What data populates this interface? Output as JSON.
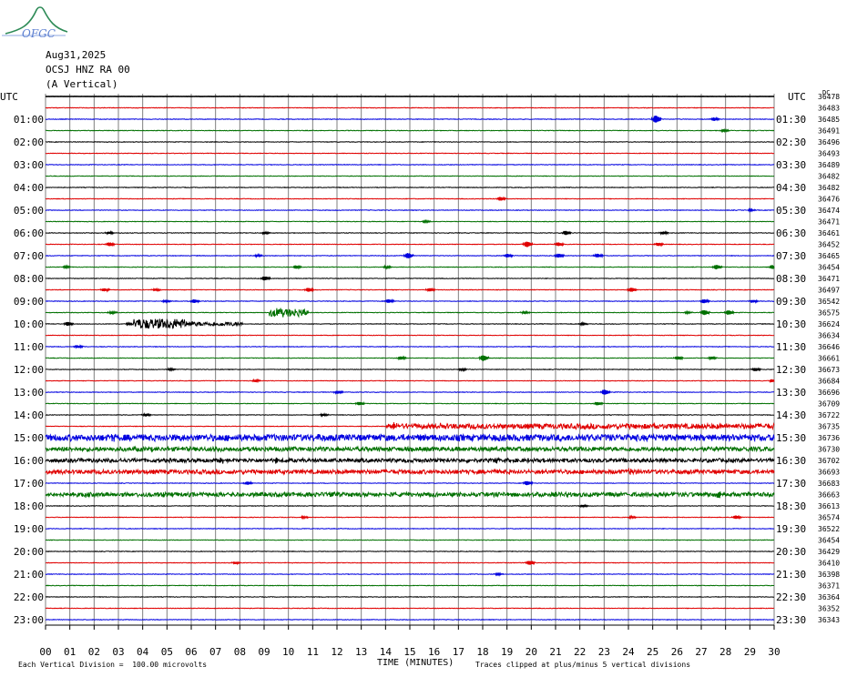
{
  "logo": {
    "text": "OFGC"
  },
  "header": {
    "date": "Aug31,2025",
    "station": "OCSJ HNZ RA 00",
    "component": "(A Vertical)"
  },
  "footer": {
    "left_note": "Each Vertical Division =  100.00 microvolts",
    "xlabel": "TIME (MINUTES)",
    "right_note": "Traces clipped at plus/minus 5 vertical divisions"
  },
  "colors": {
    "cycle": [
      "#000000",
      "#e00000",
      "#0000e0",
      "#007000"
    ],
    "grid": "#7f7f7f",
    "bg": "#ffffff"
  },
  "chart_data": {
    "type": "line",
    "title": "",
    "xlabel": "TIME (MINUTES)",
    "ylabel": "",
    "left_axis_title": "UTC",
    "right_axis_title": "UTC",
    "xlim": [
      0,
      30
    ],
    "x_ticks": [
      "00",
      "01",
      "02",
      "03",
      "04",
      "05",
      "06",
      "07",
      "08",
      "09",
      "10",
      "11",
      "12",
      "13",
      "14",
      "15",
      "16",
      "17",
      "18",
      "19",
      "20",
      "21",
      "22",
      "23",
      "24",
      "25",
      "26",
      "27",
      "28",
      "29",
      "30"
    ],
    "left_labels": [
      "01:00",
      "02:00",
      "03:00",
      "04:00",
      "05:00",
      "06:00",
      "07:00",
      "08:00",
      "09:00",
      "10:00",
      "11:00",
      "12:00",
      "13:00",
      "14:00",
      "15:00",
      "16:00",
      "17:00",
      "18:00",
      "19:00",
      "20:00",
      "21:00",
      "22:00",
      "23:00"
    ],
    "right_labels": [
      "01:30",
      "02:30",
      "03:30",
      "04:30",
      "05:30",
      "06:30",
      "07:30",
      "08:30",
      "09:30",
      "10:30",
      "11:30",
      "12:30",
      "13:30",
      "14:30",
      "15:30",
      "16:30",
      "17:30",
      "18:30",
      "19:30",
      "20:30",
      "21:30",
      "22:30",
      "23:30"
    ],
    "trace_values": [
      36478,
      36483,
      36485,
      36491,
      36496,
      36493,
      36489,
      36482,
      36482,
      36476,
      36474,
      36471,
      36461,
      36452,
      36465,
      36454,
      36471,
      36497,
      36542,
      36575,
      36624,
      36634,
      36646,
      36661,
      36673,
      36684,
      36696,
      36709,
      36722,
      36735,
      36736,
      36730,
      36702,
      36693,
      36683,
      36663,
      36613,
      36574,
      36522,
      36454,
      36429,
      36410,
      36398,
      36371,
      36364,
      36352,
      36343
    ],
    "corner_mark": "DC",
    "grid": true,
    "traces_per_hour": 2,
    "minutes_per_trace": 30,
    "events": [
      {
        "trace": 2,
        "minute": 25.0,
        "amp": 1.6
      },
      {
        "trace": 2,
        "minute": 27.4,
        "amp": 0.7
      },
      {
        "trace": 3,
        "minute": 27.8,
        "amp": 0.5
      },
      {
        "trace": 9,
        "minute": 18.6,
        "amp": 0.8
      },
      {
        "trace": 10,
        "minute": 28.9,
        "amp": 0.4
      },
      {
        "trace": 11,
        "minute": 15.5,
        "amp": 0.4
      },
      {
        "trace": 12,
        "minute": 2.5,
        "amp": 0.5
      },
      {
        "trace": 12,
        "minute": 8.9,
        "amp": 0.5
      },
      {
        "trace": 12,
        "minute": 21.3,
        "amp": 0.9
      },
      {
        "trace": 12,
        "minute": 25.3,
        "amp": 0.6
      },
      {
        "trace": 13,
        "minute": 2.5,
        "amp": 0.8
      },
      {
        "trace": 13,
        "minute": 19.7,
        "amp": 1.2
      },
      {
        "trace": 13,
        "minute": 21.0,
        "amp": 0.8
      },
      {
        "trace": 13,
        "minute": 25.1,
        "amp": 0.7
      },
      {
        "trace": 14,
        "minute": 8.6,
        "amp": 0.5
      },
      {
        "trace": 14,
        "minute": 14.8,
        "amp": 1.2
      },
      {
        "trace": 14,
        "minute": 18.9,
        "amp": 0.8
      },
      {
        "trace": 14,
        "minute": 21.0,
        "amp": 0.9
      },
      {
        "trace": 14,
        "minute": 22.6,
        "amp": 0.8
      },
      {
        "trace": 15,
        "minute": 0.7,
        "amp": 0.5
      },
      {
        "trace": 15,
        "minute": 10.2,
        "amp": 0.7
      },
      {
        "trace": 15,
        "minute": 13.9,
        "amp": 0.5
      },
      {
        "trace": 15,
        "minute": 27.5,
        "amp": 1.0
      },
      {
        "trace": 15,
        "minute": 29.8,
        "amp": 0.8
      },
      {
        "trace": 16,
        "minute": 8.9,
        "amp": 0.9
      },
      {
        "trace": 17,
        "minute": 2.3,
        "amp": 0.7
      },
      {
        "trace": 17,
        "minute": 4.4,
        "amp": 0.5
      },
      {
        "trace": 17,
        "minute": 10.7,
        "amp": 0.8
      },
      {
        "trace": 17,
        "minute": 15.7,
        "amp": 0.7
      },
      {
        "trace": 17,
        "minute": 24.0,
        "amp": 0.9
      },
      {
        "trace": 18,
        "minute": 4.8,
        "amp": 0.5
      },
      {
        "trace": 18,
        "minute": 6.0,
        "amp": 0.8
      },
      {
        "trace": 18,
        "minute": 14.0,
        "amp": 0.8
      },
      {
        "trace": 18,
        "minute": 27.0,
        "amp": 0.9
      },
      {
        "trace": 18,
        "minute": 29.0,
        "amp": 0.6
      },
      {
        "trace": 19,
        "minute": 2.6,
        "amp": 0.5
      },
      {
        "trace": 19,
        "minute": 9.5,
        "amp": 0.6
      },
      {
        "trace": 19,
        "minute": 19.6,
        "amp": 0.5
      },
      {
        "trace": 19,
        "minute": 26.3,
        "amp": 0.4
      },
      {
        "trace": 19,
        "minute": 27.0,
        "amp": 1.1
      },
      {
        "trace": 19,
        "minute": 28.0,
        "amp": 1.0
      },
      {
        "trace": 20,
        "minute": 0.8,
        "amp": 0.8
      },
      {
        "trace": 20,
        "minute": 3.3,
        "amp": 0.4
      },
      {
        "trace": 20,
        "minute": 5.7,
        "amp": 0.6
      },
      {
        "trace": 20,
        "minute": 22.0,
        "amp": 0.4
      },
      {
        "trace": 22,
        "minute": 1.2,
        "amp": 0.6
      },
      {
        "trace": 23,
        "minute": 14.5,
        "amp": 0.7
      },
      {
        "trace": 23,
        "minute": 17.9,
        "amp": 1.3
      },
      {
        "trace": 23,
        "minute": 25.9,
        "amp": 0.7
      },
      {
        "trace": 23,
        "minute": 27.3,
        "amp": 0.6
      },
      {
        "trace": 24,
        "minute": 5.0,
        "amp": 0.4
      },
      {
        "trace": 24,
        "minute": 17.0,
        "amp": 0.5
      },
      {
        "trace": 24,
        "minute": 29.1,
        "amp": 0.7
      },
      {
        "trace": 25,
        "minute": 8.5,
        "amp": 0.5
      },
      {
        "trace": 25,
        "minute": 29.8,
        "amp": 0.6
      },
      {
        "trace": 26,
        "minute": 11.9,
        "amp": 0.6
      },
      {
        "trace": 26,
        "minute": 22.9,
        "amp": 1.2
      },
      {
        "trace": 27,
        "minute": 12.8,
        "amp": 0.8
      },
      {
        "trace": 27,
        "minute": 22.6,
        "amp": 0.7
      },
      {
        "trace": 28,
        "minute": 4.0,
        "amp": 0.6
      },
      {
        "trace": 28,
        "minute": 11.3,
        "amp": 0.5
      },
      {
        "trace": 29,
        "minute": 14.2,
        "amp": 0.7
      },
      {
        "trace": 29,
        "minute": 16.2,
        "amp": 0.6
      },
      {
        "trace": 29,
        "minute": 25.0,
        "amp": 0.5
      },
      {
        "trace": 30,
        "minute": 2.7,
        "amp": 0.5
      },
      {
        "trace": 30,
        "minute": 11.2,
        "amp": 0.5
      },
      {
        "trace": 31,
        "minute": 6.9,
        "amp": 0.5
      },
      {
        "trace": 31,
        "minute": 13.5,
        "amp": 0.5
      },
      {
        "trace": 32,
        "minute": 7.1,
        "amp": 0.9
      },
      {
        "trace": 32,
        "minute": 9.4,
        "amp": 0.7
      },
      {
        "trace": 32,
        "minute": 18.5,
        "amp": 0.7
      },
      {
        "trace": 33,
        "minute": 9.3,
        "amp": 0.5
      },
      {
        "trace": 33,
        "minute": 19.8,
        "amp": 0.8
      },
      {
        "trace": 33,
        "minute": 24.0,
        "amp": 0.6
      },
      {
        "trace": 34,
        "minute": 8.2,
        "amp": 0.7
      },
      {
        "trace": 34,
        "minute": 19.7,
        "amp": 0.9
      },
      {
        "trace": 35,
        "minute": 4.8,
        "amp": 0.5
      },
      {
        "trace": 35,
        "minute": 11.6,
        "amp": 0.7
      },
      {
        "trace": 35,
        "minute": 27.6,
        "amp": 0.9
      },
      {
        "trace": 36,
        "minute": 22.0,
        "amp": 0.5
      },
      {
        "trace": 37,
        "minute": 10.5,
        "amp": 0.4
      },
      {
        "trace": 37,
        "minute": 24.0,
        "amp": 0.4
      },
      {
        "trace": 37,
        "minute": 28.3,
        "amp": 0.7
      },
      {
        "trace": 41,
        "minute": 7.7,
        "amp": 0.5
      },
      {
        "trace": 41,
        "minute": 19.8,
        "amp": 0.9
      },
      {
        "trace": 42,
        "minute": 18.5,
        "amp": 0.4
      }
    ],
    "bursts": [
      {
        "trace": 19,
        "start": 9.2,
        "end": 10.8,
        "amp": 0.35
      },
      {
        "trace": 20,
        "start": 3.6,
        "end": 5.8,
        "amp": 0.45
      },
      {
        "trace": 20,
        "start": 6.0,
        "end": 8.1,
        "amp": 0.18
      },
      {
        "trace": 30,
        "start": 0,
        "end": 30,
        "amp": 0.28
      },
      {
        "trace": 29,
        "start": 14.0,
        "end": 30,
        "amp": 0.22
      },
      {
        "trace": 31,
        "start": 0,
        "end": 30,
        "amp": 0.18
      },
      {
        "trace": 32,
        "start": 0,
        "end": 30,
        "amp": 0.16
      },
      {
        "trace": 33,
        "start": 0,
        "end": 30,
        "amp": 0.18
      },
      {
        "trace": 35,
        "start": 0,
        "end": 30,
        "amp": 0.18
      }
    ]
  }
}
